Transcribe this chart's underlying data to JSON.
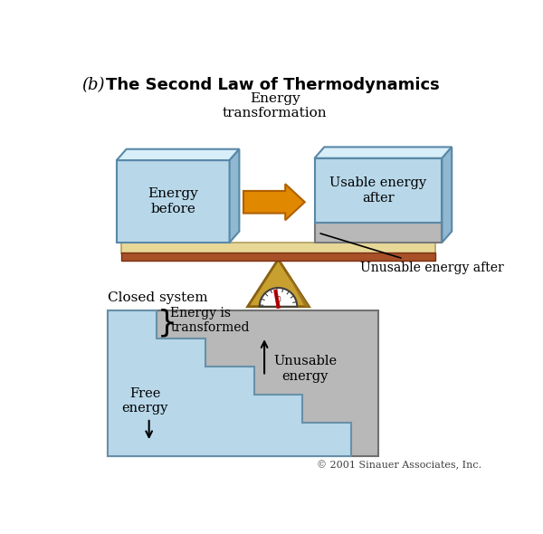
{
  "bg_color": "#ffffff",
  "title_b": "(b)",
  "title_main": "The Second Law of Thermodynamics",
  "scale_label": "Energy\ntransformation",
  "box_left_label": "Energy\nbefore",
  "box_right_top_label": "Usable energy\nafter",
  "unusable_label": "Unusable energy after",
  "closed_system_label": "Closed system",
  "energy_transformed_label": "Energy is\ntransformed",
  "unusable_energy_label": "Unusable\nenergy",
  "free_energy_label": "Free\nenergy",
  "copyright": "© 2001 Sinauer Associates, Inc.",
  "box_blue": "#b8d8ea",
  "box_blue_top": "#d8eef8",
  "box_blue_side": "#90b8d0",
  "box_gray": "#b8b8b8",
  "board_tan": "#e8d898",
  "board_brown": "#a85028",
  "arrow_orange": "#e08800",
  "arrow_dark_orange": "#b06000",
  "triangle_gold": "#c8a030",
  "triangle_dark": "#886010",
  "triangle_shadow": "#a07820",
  "needle_red": "#cc0000",
  "gauge_white": "#ffffff",
  "stair_blue": "#b8d8ea",
  "stair_gray": "#b8b8b8",
  "stair_line": "#6890a8"
}
